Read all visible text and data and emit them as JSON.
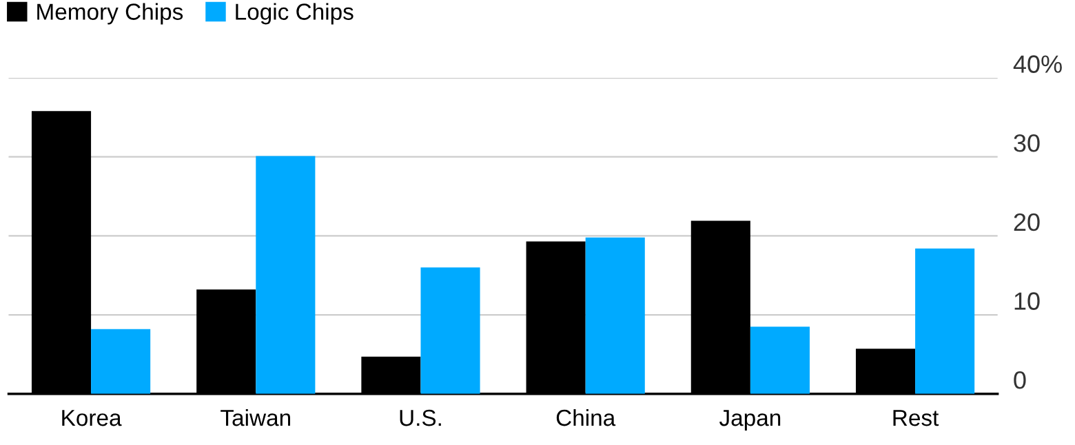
{
  "chart_data": {
    "type": "bar",
    "categories": [
      "Korea",
      "Taiwan",
      "U.S.",
      "China",
      "Japan",
      "Rest"
    ],
    "series": [
      {
        "name": "Memory Chips",
        "color": "#000000",
        "values": [
          35.8,
          13.2,
          4.7,
          19.3,
          21.9,
          5.7
        ]
      },
      {
        "name": "Logic Chips",
        "color": "#00aaff",
        "values": [
          8.2,
          30.1,
          16.0,
          19.8,
          8.5,
          18.4
        ]
      }
    ],
    "ylim": [
      0,
      40
    ],
    "yticks": [
      0,
      10,
      20,
      30,
      {
        "value": 40,
        "label": "40%"
      }
    ],
    "grid": "y",
    "legend": "top left"
  }
}
